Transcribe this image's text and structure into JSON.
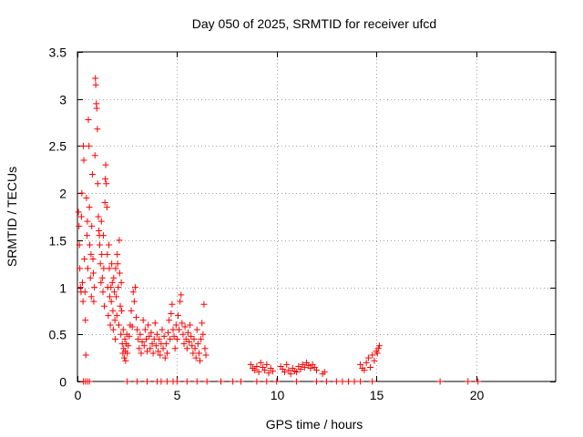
{
  "chart_data": {
    "type": "scatter",
    "title": "Day 050 of 2025, SRMTID for receiver ufcd",
    "xlabel": "GPS time / hours",
    "ylabel": "SRMTID / TECUs",
    "xlim": [
      0,
      24
    ],
    "ylim": [
      0,
      3.5
    ],
    "xticks": [
      0,
      5,
      10,
      15,
      20
    ],
    "xtick_labels": [
      "0",
      "5",
      "10",
      "15",
      "20"
    ],
    "yticks": [
      0,
      0.5,
      1,
      1.5,
      2,
      2.5,
      3,
      3.5
    ],
    "ytick_labels": [
      "0",
      "0.5",
      "1",
      "1.5",
      "2",
      "2.5",
      "3",
      "3.5"
    ],
    "grid": true,
    "marker": "+",
    "color": "#ff0000",
    "series": [
      {
        "name": "SRMTID",
        "points": [
          [
            0.05,
            1.8
          ],
          [
            0.08,
            1.65
          ],
          [
            0.1,
            1.45
          ],
          [
            0.12,
            1.2
          ],
          [
            0.15,
            1.0
          ],
          [
            0.18,
            0.95
          ],
          [
            0.2,
            1.75
          ],
          [
            0.22,
            2.0
          ],
          [
            0.25,
            1.05
          ],
          [
            0.28,
            0.85
          ],
          [
            0.3,
            2.5
          ],
          [
            0.32,
            2.35
          ],
          [
            0.35,
            1.3
          ],
          [
            0.38,
            0.95
          ],
          [
            0.4,
            0.65
          ],
          [
            0.42,
            0.28
          ],
          [
            0.45,
            1.95
          ],
          [
            0.48,
            1.55
          ],
          [
            0.5,
            1.7
          ],
          [
            0.52,
            1.2
          ],
          [
            0.55,
            2.78
          ],
          [
            0.58,
            2.5
          ],
          [
            0.6,
            1.85
          ],
          [
            0.62,
            1.45
          ],
          [
            0.65,
            1.1
          ],
          [
            0.68,
            1.35
          ],
          [
            0.7,
            0.9
          ],
          [
            0.72,
            1.65
          ],
          [
            0.75,
            2.2
          ],
          [
            0.78,
            1.3
          ],
          [
            0.8,
            1.15
          ],
          [
            0.82,
            0.85
          ],
          [
            0.85,
            1.0
          ],
          [
            0.88,
            2.4
          ],
          [
            0.9,
            3.22
          ],
          [
            0.92,
            3.15
          ],
          [
            0.95,
            2.95
          ],
          [
            0.97,
            2.9
          ],
          [
            1.0,
            2.68
          ],
          [
            1.02,
            2.1
          ],
          [
            1.05,
            1.75
          ],
          [
            1.08,
            1.6
          ],
          [
            1.1,
            1.55
          ],
          [
            1.12,
            1.45
          ],
          [
            1.15,
            1.25
          ],
          [
            1.18,
            1.05
          ],
          [
            1.2,
            1.7
          ],
          [
            1.22,
            1.35
          ],
          [
            1.25,
            1.1
          ],
          [
            1.28,
            0.95
          ],
          [
            1.3,
            1.55
          ],
          [
            1.32,
            1.2
          ],
          [
            1.35,
            0.8
          ],
          [
            1.38,
            1.9
          ],
          [
            1.4,
            2.15
          ],
          [
            1.42,
            2.3
          ],
          [
            1.45,
            2.1
          ],
          [
            1.48,
            1.85
          ],
          [
            1.5,
            1.35
          ],
          [
            1.52,
            1.0
          ],
          [
            1.55,
            0.7
          ],
          [
            1.58,
            1.45
          ],
          [
            1.6,
            1.2
          ],
          [
            1.62,
            0.9
          ],
          [
            1.65,
            0.6
          ],
          [
            1.68,
            1.0
          ],
          [
            1.7,
            0.85
          ],
          [
            1.72,
            1.25
          ],
          [
            1.75,
            1.05
          ],
          [
            1.78,
            0.75
          ],
          [
            1.8,
            0.55
          ],
          [
            1.82,
            1.1
          ],
          [
            1.85,
            0.95
          ],
          [
            1.88,
            0.65
          ],
          [
            1.9,
            0.45
          ],
          [
            1.92,
            1.2
          ],
          [
            1.95,
            0.9
          ],
          [
            1.98,
            0.7
          ],
          [
            2.0,
            1.35
          ],
          [
            2.02,
            1.25
          ],
          [
            2.05,
            1.0
          ],
          [
            2.08,
            0.6
          ],
          [
            2.1,
            1.5
          ],
          [
            2.12,
            1.15
          ],
          [
            2.15,
            0.8
          ],
          [
            2.18,
            0.5
          ],
          [
            2.2,
            1.05
          ],
          [
            2.22,
            0.75
          ],
          [
            2.25,
            0.4
          ],
          [
            2.28,
            0.3
          ],
          [
            2.3,
            0.55
          ],
          [
            2.32,
            0.35
          ],
          [
            2.35,
            0.25
          ],
          [
            2.38,
            0.45
          ],
          [
            2.4,
            0.32
          ],
          [
            2.42,
            0.22
          ],
          [
            2.45,
            0.4
          ],
          [
            2.48,
            0.5
          ],
          [
            2.5,
            0.3
          ],
          [
            2.55,
            0.38
          ],
          [
            2.6,
            0.48
          ],
          [
            2.65,
            0.6
          ],
          [
            2.7,
            0.75
          ],
          [
            2.75,
            0.58
          ],
          [
            2.8,
            0.95
          ],
          [
            2.85,
            0.85
          ],
          [
            2.9,
            1.0
          ],
          [
            2.95,
            0.68
          ],
          [
            3.0,
            0.55
          ],
          [
            3.05,
            0.45
          ],
          [
            3.1,
            0.35
          ],
          [
            3.15,
            0.5
          ],
          [
            3.2,
            0.3
          ],
          [
            3.25,
            0.42
          ],
          [
            3.3,
            0.65
          ],
          [
            3.35,
            0.38
          ],
          [
            3.4,
            0.55
          ],
          [
            3.45,
            0.45
          ],
          [
            3.5,
            0.32
          ],
          [
            3.55,
            0.6
          ],
          [
            3.6,
            0.48
          ],
          [
            3.65,
            0.35
          ],
          [
            3.7,
            0.52
          ],
          [
            3.75,
            0.4
          ],
          [
            3.8,
            0.3
          ],
          [
            3.85,
            0.45
          ],
          [
            3.9,
            0.62
          ],
          [
            3.95,
            0.38
          ],
          [
            4.0,
            0.5
          ],
          [
            4.05,
            0.32
          ],
          [
            4.1,
            0.45
          ],
          [
            4.15,
            0.28
          ],
          [
            4.2,
            0.4
          ],
          [
            4.25,
            0.55
          ],
          [
            4.3,
            0.35
          ],
          [
            4.35,
            0.48
          ],
          [
            4.4,
            0.25
          ],
          [
            4.45,
            0.4
          ],
          [
            4.5,
            0.3
          ],
          [
            4.55,
            0.52
          ],
          [
            4.6,
            0.65
          ],
          [
            4.65,
            0.45
          ],
          [
            4.7,
            0.72
          ],
          [
            4.75,
            0.82
          ],
          [
            4.8,
            0.55
          ],
          [
            4.85,
            0.48
          ],
          [
            4.9,
            0.35
          ],
          [
            4.95,
            0.6
          ],
          [
            5.0,
            0.45
          ],
          [
            5.05,
            0.7
          ],
          [
            5.1,
            0.55
          ],
          [
            5.15,
            0.85
          ],
          [
            5.2,
            0.92
          ],
          [
            5.25,
            0.62
          ],
          [
            5.3,
            0.5
          ],
          [
            5.35,
            0.4
          ],
          [
            5.4,
            0.58
          ],
          [
            5.45,
            0.45
          ],
          [
            5.5,
            0.35
          ],
          [
            5.55,
            0.52
          ],
          [
            5.6,
            0.42
          ],
          [
            5.65,
            0.6
          ],
          [
            5.7,
            0.48
          ],
          [
            5.75,
            0.38
          ],
          [
            5.8,
            0.3
          ],
          [
            5.85,
            0.45
          ],
          [
            5.9,
            0.35
          ],
          [
            5.95,
            0.25
          ],
          [
            6.0,
            0.55
          ],
          [
            6.05,
            0.4
          ],
          [
            6.1,
            0.3
          ],
          [
            6.15,
            0.22
          ],
          [
            6.2,
            0.45
          ],
          [
            6.25,
            0.62
          ],
          [
            6.3,
            0.5
          ],
          [
            6.35,
            0.82
          ],
          [
            6.4,
            0.35
          ],
          [
            6.45,
            0.28
          ],
          [
            6.5,
            0.0
          ],
          [
            8.7,
            0.18
          ],
          [
            8.8,
            0.14
          ],
          [
            8.9,
            0.12
          ],
          [
            9.0,
            0.16
          ],
          [
            9.1,
            0.1
          ],
          [
            9.2,
            0.2
          ],
          [
            9.3,
            0.15
          ],
          [
            9.4,
            0.12
          ],
          [
            9.5,
            0.18
          ],
          [
            9.6,
            0.09
          ],
          [
            9.7,
            0.14
          ],
          [
            9.8,
            0.11
          ],
          [
            10.2,
            0.16
          ],
          [
            10.3,
            0.13
          ],
          [
            10.4,
            0.1
          ],
          [
            10.5,
            0.18
          ],
          [
            10.6,
            0.12
          ],
          [
            10.7,
            0.08
          ],
          [
            10.8,
            0.14
          ],
          [
            10.9,
            0.11
          ],
          [
            11.0,
            0.1
          ],
          [
            11.1,
            0.16
          ],
          [
            11.2,
            0.13
          ],
          [
            11.3,
            0.18
          ],
          [
            11.4,
            0.15
          ],
          [
            11.5,
            0.2
          ],
          [
            11.6,
            0.17
          ],
          [
            11.7,
            0.14
          ],
          [
            11.8,
            0.18
          ],
          [
            11.9,
            0.15
          ],
          [
            12.0,
            0.12
          ],
          [
            12.3,
            0.08
          ],
          [
            12.4,
            0.1
          ],
          [
            14.2,
            0.18
          ],
          [
            14.3,
            0.14
          ],
          [
            14.4,
            0.12
          ],
          [
            14.5,
            0.2
          ],
          [
            14.6,
            0.25
          ],
          [
            14.7,
            0.15
          ],
          [
            14.8,
            0.28
          ],
          [
            14.9,
            0.22
          ],
          [
            15.0,
            0.32
          ],
          [
            15.05,
            0.3
          ],
          [
            15.1,
            0.35
          ],
          [
            15.15,
            0.38
          ],
          [
            0.3,
            0.0
          ],
          [
            0.4,
            0.0
          ],
          [
            0.5,
            0.0
          ],
          [
            0.6,
            0.0
          ],
          [
            2.5,
            0.0
          ],
          [
            3.0,
            0.0
          ],
          [
            3.5,
            0.0
          ],
          [
            4.0,
            0.0
          ],
          [
            4.2,
            0.0
          ],
          [
            4.5,
            0.0
          ],
          [
            4.8,
            0.0
          ],
          [
            5.0,
            0.0
          ],
          [
            5.5,
            0.0
          ],
          [
            6.0,
            0.0
          ],
          [
            7.2,
            0.0
          ],
          [
            7.8,
            0.0
          ],
          [
            8.2,
            0.0
          ],
          [
            9.0,
            0.0
          ],
          [
            9.5,
            0.0
          ],
          [
            10.0,
            0.0
          ],
          [
            11.0,
            0.0
          ],
          [
            12.0,
            0.0
          ],
          [
            12.5,
            0.0
          ],
          [
            13.0,
            0.0
          ],
          [
            13.3,
            0.0
          ],
          [
            13.6,
            0.0
          ],
          [
            13.9,
            0.0
          ],
          [
            14.2,
            0.0
          ],
          [
            14.8,
            0.0
          ],
          [
            18.2,
            0.0
          ],
          [
            19.6,
            0.0
          ],
          [
            20.1,
            0.0
          ]
        ]
      }
    ]
  }
}
